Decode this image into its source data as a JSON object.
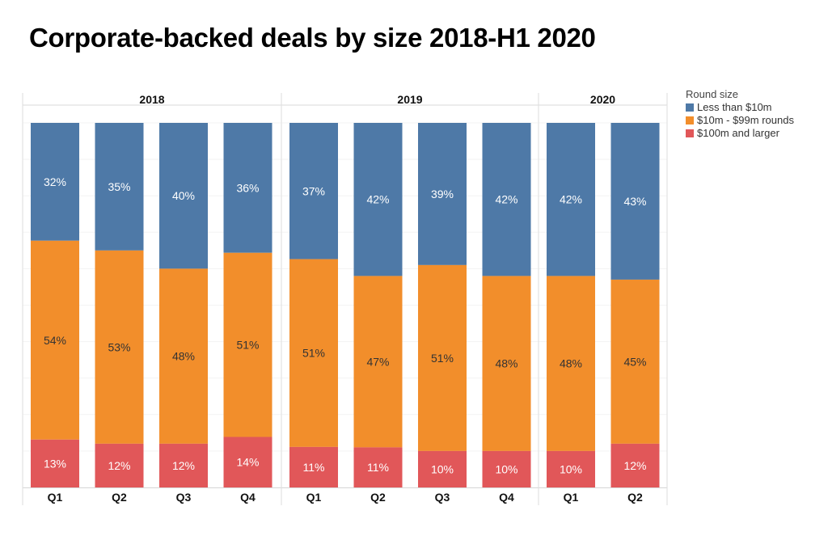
{
  "title": "Corporate-backed deals by size 2018-H1 2020",
  "legend": {
    "title": "Round size",
    "items": [
      {
        "label": "Less than $10m",
        "color": "#4e79a7"
      },
      {
        "label": "$10m - $99m rounds",
        "color": "#f28e2b"
      },
      {
        "label": "$100m and larger",
        "color": "#e15759"
      }
    ]
  },
  "chart_data": {
    "type": "bar",
    "stacked": true,
    "normalized": true,
    "title": "Corporate-backed deals by size 2018-H1 2020",
    "xlabel": "",
    "ylabel": "",
    "ylim": [
      0,
      100
    ],
    "grid": true,
    "legend_position": "top-right",
    "groups": [
      {
        "label": "2018",
        "categories": [
          "Q1",
          "Q2",
          "Q3",
          "Q4"
        ]
      },
      {
        "label": "2019",
        "categories": [
          "Q1",
          "Q2",
          "Q3",
          "Q4"
        ]
      },
      {
        "label": "2020",
        "categories": [
          "Q1",
          "Q2"
        ]
      }
    ],
    "categories": [
      "2018 Q1",
      "2018 Q2",
      "2018 Q3",
      "2018 Q4",
      "2019 Q1",
      "2019 Q2",
      "2019 Q3",
      "2019 Q4",
      "2020 Q1",
      "2020 Q2"
    ],
    "series": [
      {
        "name": "Less than $10m",
        "color": "#4e79a7",
        "label_color": "#ffffff",
        "values": [
          32,
          35,
          40,
          36,
          37,
          42,
          39,
          42,
          42,
          43
        ],
        "labels": [
          "32%",
          "35%",
          "40%",
          "36%",
          "37%",
          "42%",
          "39%",
          "42%",
          "42%",
          "43%"
        ]
      },
      {
        "name": "$10m - $99m rounds",
        "color": "#f28e2b",
        "label_color": "#333333",
        "values": [
          54,
          53,
          48,
          51,
          51,
          47,
          51,
          48,
          48,
          45
        ],
        "labels": [
          "54%",
          "53%",
          "48%",
          "51%",
          "51%",
          "47%",
          "51%",
          "48%",
          "48%",
          "45%"
        ]
      },
      {
        "name": "$100m and larger",
        "color": "#e15759",
        "label_color": "#ffffff",
        "values": [
          13,
          12,
          12,
          14,
          11,
          11,
          10,
          10,
          10,
          12
        ],
        "labels": [
          "13%",
          "12%",
          "12%",
          "14%",
          "11%",
          "11%",
          "10%",
          "10%",
          "10%",
          "12%"
        ]
      }
    ]
  }
}
